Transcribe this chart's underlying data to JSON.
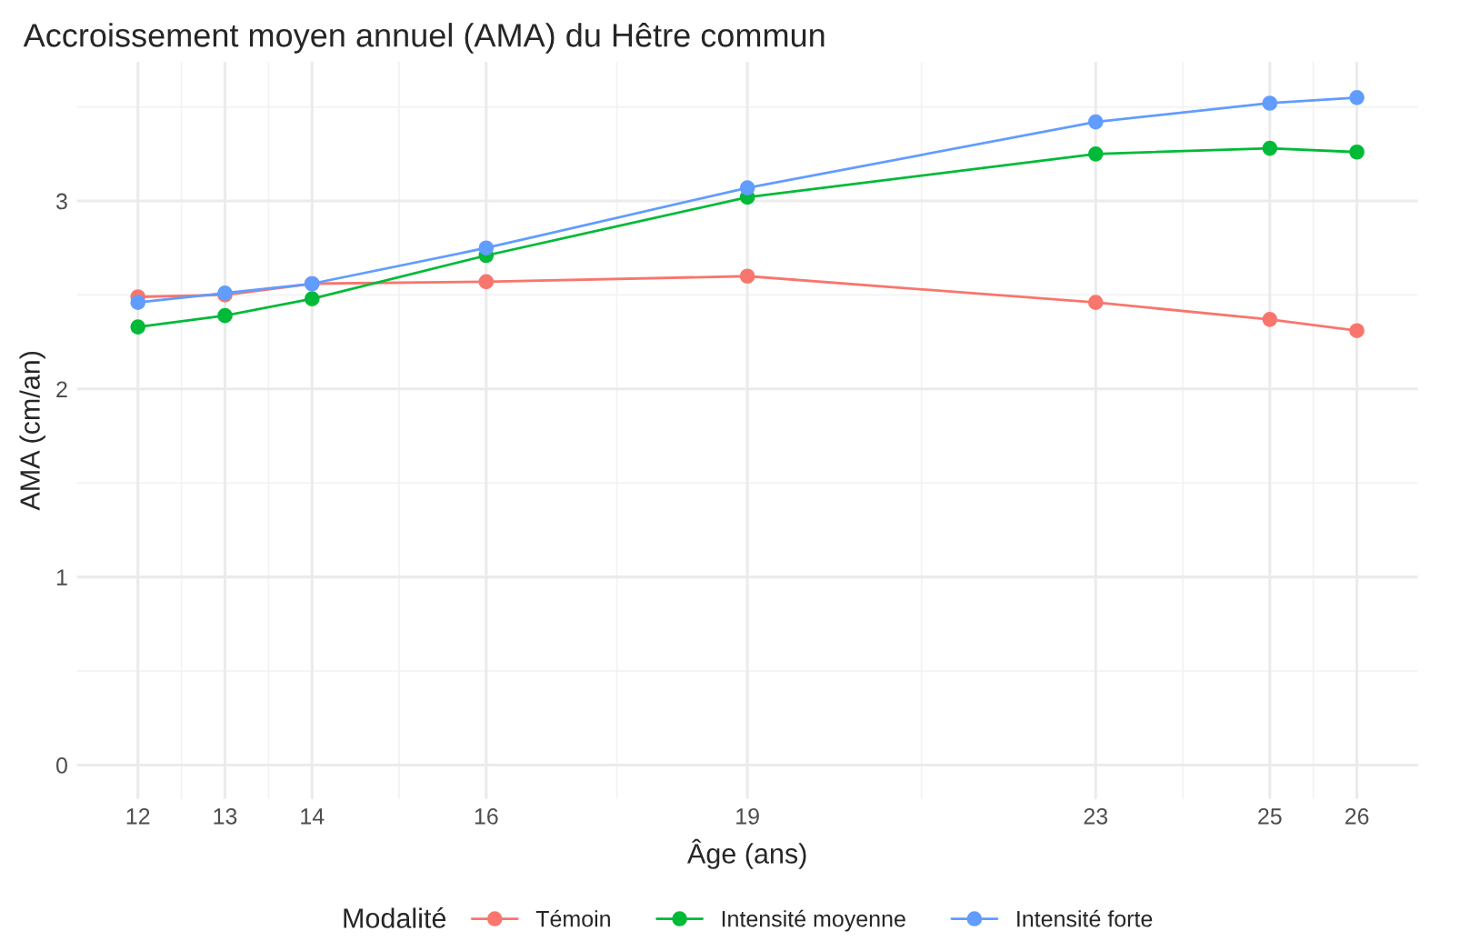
{
  "chart_data": {
    "type": "line",
    "title": "Accroissement moyen annuel (AMA) du Hêtre commun",
    "xlabel": "Âge (ans)",
    "ylabel": "AMA (cm/an)",
    "legend_title": "Modalité",
    "x": [
      12,
      13,
      14,
      16,
      19,
      23,
      25,
      26
    ],
    "series": [
      {
        "name": "Témoin",
        "color": "#f8766d",
        "values": [
          2.49,
          2.5,
          2.56,
          2.57,
          2.6,
          2.46,
          2.37,
          2.31
        ]
      },
      {
        "name": "Intensité moyenne",
        "color": "#00ba38",
        "values": [
          2.33,
          2.39,
          2.48,
          2.71,
          3.02,
          3.25,
          3.28,
          3.26
        ]
      },
      {
        "name": "Intensité forte",
        "color": "#619cff",
        "values": [
          2.46,
          2.51,
          2.56,
          2.75,
          3.07,
          3.42,
          3.52,
          3.55
        ]
      }
    ],
    "xlim": [
      11.3,
      26.7
    ],
    "xticks": [
      12,
      13,
      14,
      16,
      19,
      23,
      25,
      26
    ],
    "ylim": [
      -0.18,
      3.74
    ],
    "yticks": [
      0,
      1,
      2,
      3
    ],
    "grid": true,
    "legend": "bottom",
    "marker": "circle",
    "line_style": "solid"
  }
}
